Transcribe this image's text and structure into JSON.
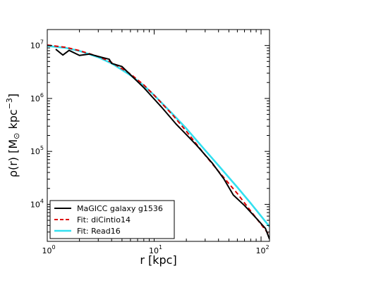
{
  "chart_data": {
    "type": "line",
    "title": "",
    "xlabel": "r  [kpc]",
    "ylabel_parts": {
      "rho": "ρ(r)  [M",
      "sun": "⊙",
      "kpc": " kpc",
      "exp": "−3",
      "close": "]"
    },
    "x_scale": "log",
    "y_scale": "log",
    "xlim": [
      1,
      120
    ],
    "ylim": [
      2000,
      20000000
    ],
    "grid": false,
    "legend_position": "lower-left",
    "x_ticks": [
      {
        "value": 1,
        "base": "10",
        "exp": "0"
      },
      {
        "value": 10,
        "base": "10",
        "exp": "1"
      },
      {
        "value": 100,
        "base": "10",
        "exp": "2"
      }
    ],
    "y_ticks": [
      {
        "value": 10000,
        "base": "10",
        "exp": "4"
      },
      {
        "value": 100000,
        "base": "10",
        "exp": "5"
      },
      {
        "value": 1000000,
        "base": "10",
        "exp": "6"
      },
      {
        "value": 10000000,
        "base": "10",
        "exp": "7"
      }
    ],
    "series": [
      {
        "name": "MaGICC galaxy g1536",
        "color": "#000000",
        "dash": "solid",
        "x": [
          1.2,
          1.4,
          1.6,
          2.0,
          2.5,
          3.0,
          3.8,
          4.0,
          5.0,
          6.0,
          8.0,
          12.0,
          16.0,
          25.0,
          35.0,
          45.0,
          55.0,
          70.0,
          90.0,
          110.0,
          120.0
        ],
        "y": [
          8500000,
          6600000,
          8100000,
          6500000,
          6900000,
          6200000,
          5500000,
          4600000,
          4000000,
          2800000,
          1600000,
          650000,
          330000,
          130000,
          60000,
          30000,
          15000,
          9500.0,
          5500,
          3500,
          2200
        ]
      },
      {
        "name": "Fit: diCintio14",
        "color": "#dd0000",
        "dash": "dashed",
        "x": [
          1.0,
          1.5,
          2.0,
          3.0,
          4.0,
          6.0,
          8.0,
          10.0,
          15.0,
          20.0,
          30.0,
          40.0,
          60.0,
          80.0,
          100.0,
          120.0
        ],
        "y": [
          10200000,
          9200000,
          8000000,
          6200000,
          4800000,
          2900000,
          1800000,
          1150000,
          480000,
          240000,
          85000,
          42000,
          16000,
          7500,
          4200,
          2600
        ]
      },
      {
        "name": "Fit: Read16",
        "color": "#33e0f0",
        "dash": "solid",
        "x": [
          1.0,
          1.5,
          2.0,
          3.0,
          4.0,
          6.0,
          8.0,
          10.0,
          15.0,
          20.0,
          30.0,
          40.0,
          60.0,
          80.0,
          100.0,
          120.0
        ],
        "y": [
          9800000,
          9000000,
          7900000,
          6000000,
          4600000,
          2750000,
          1750000,
          1150000,
          500000,
          270000,
          105000,
          54000,
          21000,
          10500,
          6000,
          3800
        ]
      }
    ]
  }
}
